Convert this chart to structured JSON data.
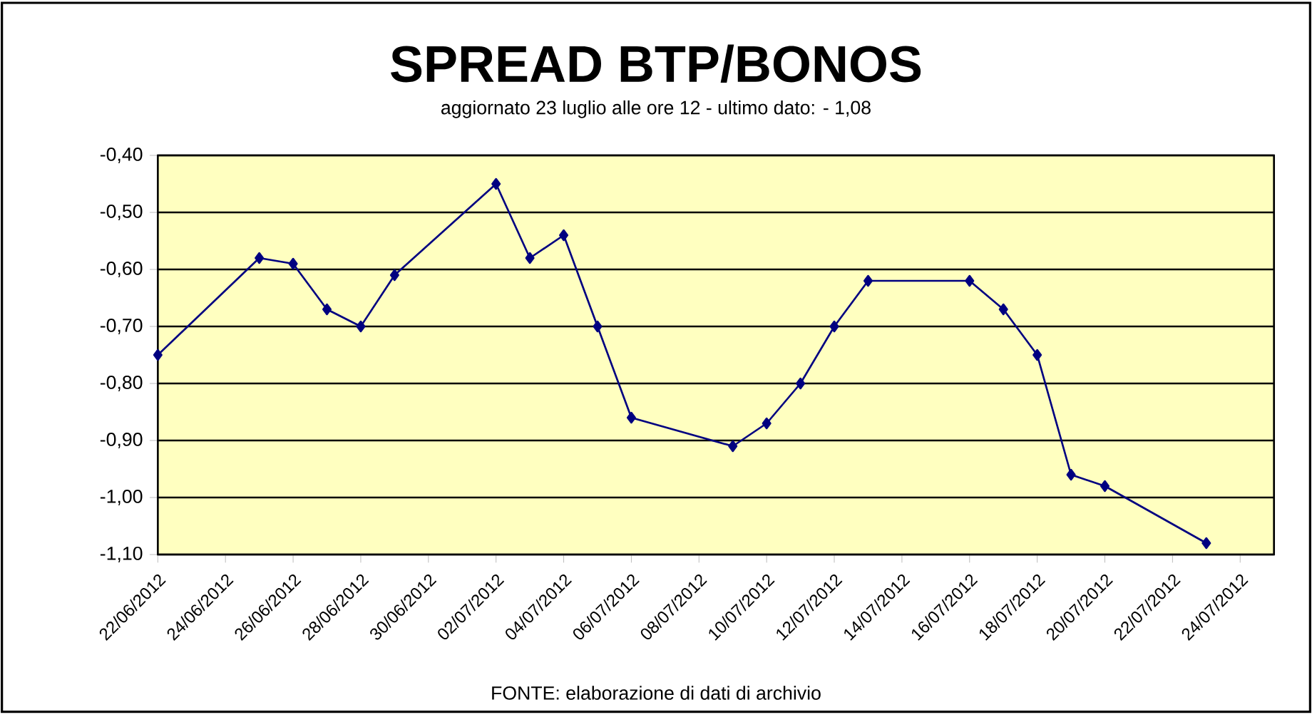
{
  "chart_data": {
    "type": "line",
    "title": "SPREAD BTP/BONOS",
    "subtitle": "aggiornato 23 luglio alle ore 12 - ultimo dato: - 1,08",
    "annotations": [
      "FONTE: elaborazione di dati di archivio"
    ],
    "x": [
      "2012-06-22",
      "2012-06-25",
      "2012-06-26",
      "2012-06-27",
      "2012-06-28",
      "2012-06-29",
      "2012-07-02",
      "2012-07-03",
      "2012-07-04",
      "2012-07-05",
      "2012-07-06",
      "2012-07-09",
      "2012-07-10",
      "2012-07-11",
      "2012-07-12",
      "2012-07-13",
      "2012-07-16",
      "2012-07-17",
      "2012-07-18",
      "2012-07-19",
      "2012-07-20",
      "2012-07-23"
    ],
    "series": [
      {
        "color": "#000080",
        "values": [
          -0.75,
          -0.58,
          -0.59,
          -0.67,
          -0.7,
          -0.61,
          -0.45,
          -0.58,
          -0.54,
          -0.7,
          -0.86,
          -0.91,
          -0.87,
          -0.8,
          -0.7,
          -0.62,
          -0.62,
          -0.67,
          -0.75,
          -0.96,
          -0.98,
          -1.08
        ]
      }
    ],
    "marker": "diamond",
    "line_style": "solid",
    "grid": "y",
    "ylim": [
      -1.1,
      -0.4
    ],
    "yticks": [
      {
        "value": -0.4,
        "label": "-0,40"
      },
      {
        "value": -0.5,
        "label": "-0,50"
      },
      {
        "value": -0.6,
        "label": "-0,60"
      },
      {
        "value": -0.7,
        "label": "-0,70"
      },
      {
        "value": -0.8,
        "label": "-0,80"
      },
      {
        "value": -0.9,
        "label": "-0,90"
      },
      {
        "value": -1.0,
        "label": "-1,00"
      },
      {
        "value": -1.1,
        "label": "-1,10"
      }
    ],
    "xlim": [
      "2012-06-22",
      "2012-07-25"
    ],
    "xticks": [
      {
        "value": "2012-06-22",
        "label": "22/06/2012"
      },
      {
        "value": "2012-06-24",
        "label": "24/06/2012"
      },
      {
        "value": "2012-06-26",
        "label": "26/06/2012"
      },
      {
        "value": "2012-06-28",
        "label": "28/06/2012"
      },
      {
        "value": "2012-06-30",
        "label": "30/06/2012"
      },
      {
        "value": "2012-07-02",
        "label": "02/07/2012"
      },
      {
        "value": "2012-07-04",
        "label": "04/07/2012"
      },
      {
        "value": "2012-07-06",
        "label": "06/07/2012"
      },
      {
        "value": "2012-07-08",
        "label": "08/07/2012"
      },
      {
        "value": "2012-07-10",
        "label": "10/07/2012"
      },
      {
        "value": "2012-07-12",
        "label": "12/07/2012"
      },
      {
        "value": "2012-07-14",
        "label": "14/07/2012"
      },
      {
        "value": "2012-07-16",
        "label": "16/07/2012"
      },
      {
        "value": "2012-07-18",
        "label": "18/07/2012"
      },
      {
        "value": "2012-07-20",
        "label": "20/07/2012"
      },
      {
        "value": "2012-07-22",
        "label": "22/07/2012"
      },
      {
        "value": "2012-07-24",
        "label": "24/07/2012"
      }
    ]
  }
}
